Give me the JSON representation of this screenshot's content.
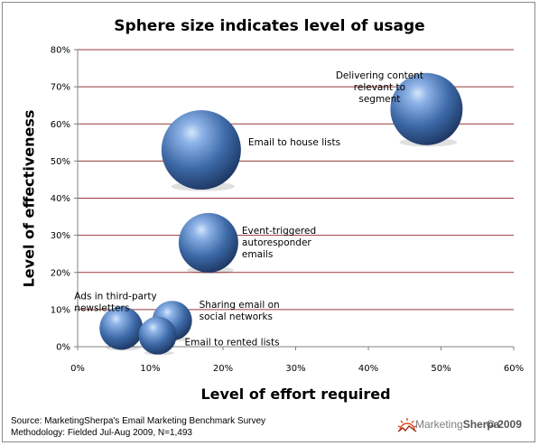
{
  "chart_data": {
    "type": "bubble",
    "title": "Sphere size indicates level of usage",
    "xlabel": "Level of effort required",
    "ylabel": "Level of effectiveness",
    "xlim": [
      0,
      60
    ],
    "ylim": [
      0,
      80
    ],
    "x_ticks": [
      "0%",
      "10%",
      "20%",
      "30%",
      "40%",
      "50%",
      "60%"
    ],
    "y_ticks": [
      "0%",
      "10%",
      "20%",
      "30%",
      "40%",
      "50%",
      "60%",
      "70%",
      "80%"
    ],
    "grid": "horizontal",
    "points": [
      {
        "label_lines": [
          "Delivering content",
          "relevant to",
          "segment"
        ],
        "x": 48,
        "y": 64,
        "size": 40
      },
      {
        "label_lines": [
          "Email to house lists"
        ],
        "x": 17,
        "y": 53,
        "size": 44
      },
      {
        "label_lines": [
          "Event-triggered",
          "autoresponder",
          "emails"
        ],
        "x": 18,
        "y": 28,
        "size": 33
      },
      {
        "label_lines": [
          "Ads in third-party",
          "newsletters"
        ],
        "x": 6,
        "y": 5,
        "size": 24
      },
      {
        "label_lines": [
          "Sharing email on",
          "social networks"
        ],
        "x": 13,
        "y": 7,
        "size": 22
      },
      {
        "label_lines": [
          "Email to rented lists"
        ],
        "x": 11,
        "y": 3,
        "size": 21
      }
    ]
  },
  "footer": {
    "source_line1": "Source: MarketingSherpa's Email Marketing Benchmark Survey",
    "source_line2": "Methodology: Fielded Jul-Aug 2009, N=1,493",
    "brand_marketing": "Marketing",
    "brand_sherpa": "Sherpa",
    "brand_year": "© 2009"
  }
}
